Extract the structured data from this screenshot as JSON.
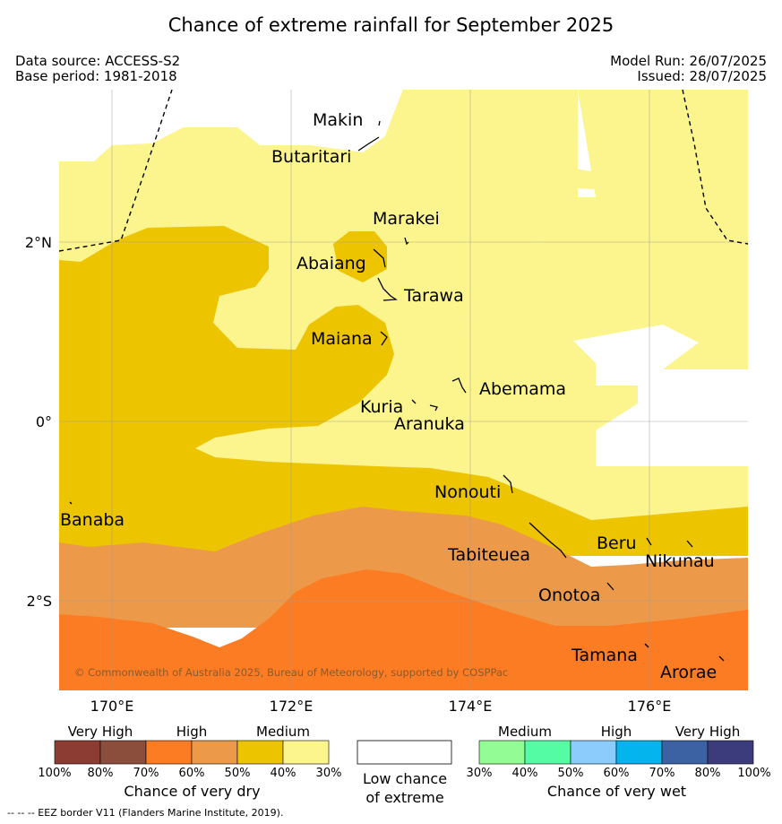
{
  "header": {
    "title": "Chance of extreme rainfall for September 2025",
    "data_source": "Data source: ACCESS-S2",
    "base_period": "Base period: 1981-2018",
    "model_run": "Model Run: 26/07/2025",
    "issued": "Issued: 28/07/2025"
  },
  "map": {
    "places": [
      {
        "name": "Makin"
      },
      {
        "name": "Butaritari"
      },
      {
        "name": "Marakei"
      },
      {
        "name": "Abaiang"
      },
      {
        "name": "Tarawa"
      },
      {
        "name": "Maiana"
      },
      {
        "name": "Abemama"
      },
      {
        "name": "Kuria"
      },
      {
        "name": "Aranuka"
      },
      {
        "name": "Nonouti"
      },
      {
        "name": "Banaba"
      },
      {
        "name": "Tabiteuea"
      },
      {
        "name": "Beru"
      },
      {
        "name": "Nikunau"
      },
      {
        "name": "Onotoa"
      },
      {
        "name": "Tamana"
      },
      {
        "name": "Arorae"
      }
    ],
    "lon_ticks": [
      "170°E",
      "172°E",
      "174°E",
      "176°E"
    ],
    "lat_ticks": [
      "2°N",
      "0°",
      "2°S"
    ],
    "credit": "© Commonwealth of Australia 2025, Bureau of Meteorology, supported by COSPPac",
    "colors": {
      "dry_medium_light": "#fcf48c",
      "dry_medium": "#ecc400",
      "dry_high_light": "#ec9a4a",
      "dry_high": "#fc7c24",
      "low_chance": "#ffffff"
    }
  },
  "legend": {
    "dry": {
      "groups": [
        "Very High",
        "High",
        "Medium"
      ],
      "colors": [
        "#8c3c32",
        "#8c4e3c",
        "#fc7c24",
        "#ec9a4a",
        "#ecc400",
        "#fcf48c"
      ],
      "ticks": [
        "100%",
        "80%",
        "70%",
        "60%",
        "50%",
        "40%",
        "30%"
      ],
      "label": "Chance of very dry"
    },
    "low": {
      "line1": "Low chance",
      "line2": "of extreme"
    },
    "wet": {
      "groups": [
        "Medium",
        "High",
        "Very High"
      ],
      "colors": [
        "#94fc94",
        "#54fca4",
        "#8cccfc",
        "#04b4ec",
        "#3c62a4",
        "#3c3c7c"
      ],
      "ticks": [
        "30%",
        "40%",
        "50%",
        "60%",
        "70%",
        "80%",
        "100%"
      ],
      "label": "Chance of very wet"
    }
  },
  "footer": "--  --  -- EEZ border V11 (Flanders Marine Institute, 2019)."
}
